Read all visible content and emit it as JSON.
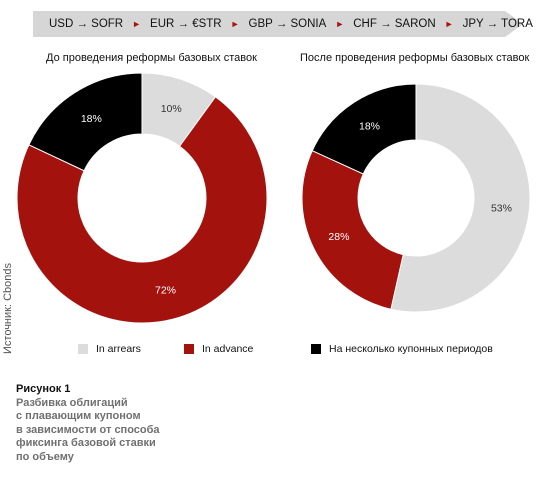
{
  "banner": {
    "items": [
      "USD → SOFR",
      "EUR → €STR",
      "GBP → SONIA",
      "CHF → SARON",
      "JPY → TORA"
    ],
    "separator": "►"
  },
  "source": "Источник: Cbonds",
  "legend": [
    {
      "label": "In arrears",
      "color": "#dcdcdc"
    },
    {
      "label": "In advance",
      "color": "#a4120e"
    },
    {
      "label": "На несколько купонных периодов",
      "color": "#000000"
    }
  ],
  "caption": {
    "heading": "Рисунок 1",
    "lines": [
      "Разбивка облигаций",
      "с плавающим купоном",
      "в зависимости от способа",
      "фиксинга базовой ставки",
      "по объему"
    ]
  },
  "chart_data": [
    {
      "type": "pie",
      "title": "До проведения реформы базовых ставок",
      "slices": [
        {
          "label": "In arrears",
          "value": 10,
          "color": "#dcdcdc",
          "label_text": "10%",
          "text_color": "#333333"
        },
        {
          "label": "In advance",
          "value": 72,
          "color": "#a4120e",
          "label_text": "72%",
          "text_color": "#ffffff"
        },
        {
          "label": "На несколько купонных периодов",
          "value": 18,
          "color": "#000000",
          "label_text": "18%",
          "text_color": "#ffffff"
        }
      ]
    },
    {
      "type": "pie",
      "title": "После проведения реформы базовых ставок",
      "slices": [
        {
          "label": "In arrears",
          "value": 53,
          "color": "#dcdcdc",
          "label_text": "53%",
          "text_color": "#333333"
        },
        {
          "label": "In advance",
          "value": 28,
          "color": "#a4120e",
          "label_text": "28%",
          "text_color": "#ffffff"
        },
        {
          "label": "На несколько купонных периодов",
          "value": 18,
          "color": "#000000",
          "label_text": "18%",
          "text_color": "#ffffff"
        }
      ]
    }
  ]
}
